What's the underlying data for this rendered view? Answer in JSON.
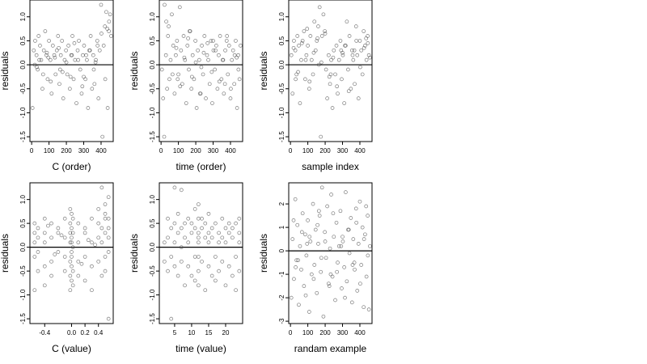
{
  "chart_data": [
    {
      "type": "scatter",
      "xlabel": "C (order)",
      "ylabel": "residuals",
      "xlim": [
        -10,
        470
      ],
      "ylim": [
        -1.6,
        1.35
      ],
      "xticks": [
        0,
        100,
        200,
        300,
        400
      ],
      "yticks": [
        -1.5,
        -1.0,
        -0.5,
        0.0,
        0.5,
        1.0
      ],
      "yticklabels": [
        "-1.5",
        "-1.0",
        "-0.5",
        "0.0",
        "0.5",
        "1.0"
      ],
      "hline": 0,
      "x": [
        5,
        12,
        20,
        28,
        35,
        40,
        48,
        55,
        62,
        70,
        78,
        85,
        92,
        100,
        108,
        115,
        122,
        130,
        138,
        145,
        152,
        160,
        168,
        175,
        182,
        190,
        198,
        205,
        212,
        220,
        228,
        235,
        242,
        250,
        258,
        265,
        272,
        280,
        288,
        295,
        302,
        310,
        318,
        325,
        332,
        340,
        348,
        355,
        362,
        370,
        378,
        385,
        392,
        400,
        408,
        415,
        422,
        430,
        438,
        445,
        452,
        458,
        18,
        44,
        66,
        88,
        110,
        134,
        156,
        178,
        200,
        224,
        246,
        268,
        292,
        314,
        336,
        358,
        380,
        402,
        424,
        446,
        30,
        96,
        164,
        232,
        300,
        368,
        436
      ],
      "y": [
        -0.9,
        0.3,
        0.5,
        0.2,
        -0.1,
        0.6,
        0.4,
        0.1,
        -0.5,
        0.3,
        0.7,
        0.2,
        -0.3,
        0.5,
        0.1,
        -0.6,
        0.4,
        0.2,
        -0.2,
        0.3,
        0.6,
        -0.4,
        0.2,
        0.5,
        -0.7,
        0.1,
        0.3,
        -0.2,
        0.4,
        -0.5,
        0.2,
        0.6,
        -0.3,
        0.1,
        -0.8,
        0.3,
        0.5,
        -0.1,
        -0.6,
        0.2,
        0.4,
        -0.3,
        0.1,
        -0.9,
        0.3,
        0.6,
        -0.5,
        0.2,
        -0.4,
        0.1,
        0.5,
        -0.7,
        0.3,
        1.25,
        -1.5,
        0.4,
        0.8,
        1.1,
        -0.9,
        0.7,
        1.05,
        0.6,
        0.0,
        0.1,
        -0.2,
        0.25,
        -0.35,
        0.15,
        0.35,
        -0.15,
        0.05,
        -0.25,
        0.45,
        0.1,
        -0.45,
        0.2,
        0.3,
        -0.1,
        0.4,
        0.65,
        -0.3,
        0.9,
        -0.05,
        0.15,
        -0.1,
        0.2,
        -0.25,
        0.05,
        0.75
      ]
    },
    {
      "type": "scatter",
      "xlabel": "time (order)",
      "ylabel": "residuals",
      "xlim": [
        -10,
        470
      ],
      "ylim": [
        -1.6,
        1.35
      ],
      "xticks": [
        0,
        100,
        200,
        300,
        400
      ],
      "yticks": [
        -1.5,
        -1.0,
        -0.5,
        0.0,
        0.5,
        1.0
      ],
      "yticklabels": [
        "-1.5",
        "-1.0",
        "-0.5",
        "0.0",
        "0.5",
        "1.0"
      ],
      "hline": 0,
      "x": [
        5,
        12,
        20,
        28,
        35,
        40,
        48,
        55,
        62,
        70,
        78,
        85,
        92,
        100,
        108,
        115,
        122,
        130,
        138,
        145,
        152,
        160,
        168,
        175,
        182,
        190,
        198,
        205,
        212,
        220,
        228,
        235,
        242,
        250,
        258,
        265,
        272,
        280,
        288,
        295,
        302,
        310,
        318,
        325,
        332,
        340,
        348,
        355,
        362,
        370,
        378,
        385,
        392,
        400,
        408,
        415,
        422,
        430,
        438,
        445,
        452,
        458,
        18,
        44,
        66,
        88,
        110,
        134,
        156,
        178,
        200,
        224,
        246,
        268,
        292,
        314,
        336,
        358,
        380,
        402,
        424,
        446,
        30,
        96,
        164,
        232,
        300,
        368,
        436
      ],
      "y": [
        -0.1,
        -0.7,
        1.25,
        0.2,
        -0.5,
        0.6,
        -0.3,
        0.1,
        1.05,
        0.4,
        -0.6,
        0.2,
        0.5,
        -0.2,
        1.2,
        0.3,
        -0.4,
        0.6,
        0.1,
        -0.8,
        0.4,
        -0.1,
        0.7,
        -0.5,
        0.2,
        -0.3,
        0.5,
        -0.9,
        0.3,
        0.1,
        -0.6,
        0.4,
        -0.2,
        0.6,
        -0.7,
        0.2,
        0.1,
        -0.4,
        0.5,
        -0.8,
        0.3,
        -0.1,
        0.4,
        -0.5,
        0.2,
        0.6,
        -0.3,
        0.1,
        -0.6,
        0.3,
        0.5,
        -0.2,
        0.4,
        -0.7,
        0.1,
        0.3,
        -0.4,
        0.5,
        -0.9,
        0.2,
        -0.3,
        0.4,
        -1.5,
        0.8,
        -0.2,
        0.35,
        -0.45,
        0.15,
        0.55,
        -0.25,
        0.05,
        -0.6,
        0.25,
        0.45,
        -0.15,
        0.3,
        -0.35,
        0.1,
        0.6,
        -0.5,
        0.2,
        -0.1,
        0.9,
        -0.3,
        0.7,
        -0.05,
        0.5,
        -0.4,
        0.15
      ]
    },
    {
      "type": "scatter",
      "xlabel": "sample index",
      "ylabel": "residuals",
      "xlim": [
        -10,
        470
      ],
      "ylim": [
        -1.6,
        1.35
      ],
      "xticks": [
        0,
        100,
        200,
        300,
        400
      ],
      "yticks": [
        -1.5,
        -1.0,
        -0.5,
        0.0,
        0.5,
        1.0
      ],
      "yticklabels": [
        "-1.5",
        "-1.0",
        "-0.5",
        "0.0",
        "0.5",
        "1.0"
      ],
      "hline": 0,
      "x": [
        5,
        12,
        20,
        28,
        35,
        40,
        48,
        55,
        62,
        70,
        78,
        85,
        92,
        100,
        108,
        115,
        122,
        130,
        138,
        145,
        152,
        160,
        168,
        175,
        182,
        190,
        198,
        205,
        212,
        220,
        228,
        235,
        242,
        250,
        258,
        265,
        272,
        280,
        288,
        295,
        302,
        310,
        318,
        325,
        332,
        340,
        348,
        355,
        362,
        370,
        378,
        385,
        392,
        400,
        408,
        415,
        422,
        430,
        438,
        445,
        452,
        458,
        18,
        44,
        66,
        88,
        110,
        134,
        156,
        178,
        200,
        224,
        246,
        268,
        292,
        314,
        336,
        358,
        380,
        402,
        424,
        446,
        30,
        96,
        164,
        232,
        300,
        368,
        436
      ],
      "y": [
        0.2,
        -0.6,
        0.5,
        0.3,
        -0.2,
        0.6,
        0.4,
        -0.8,
        0.1,
        0.5,
        0.7,
        -0.3,
        0.2,
        0.4,
        -0.5,
        0.6,
        0.1,
        -0.2,
        0.9,
        0.3,
        0.5,
        0.8,
        1.2,
        -1.5,
        0.6,
        1.05,
        0.7,
        -0.1,
        -0.7,
        0.2,
        -0.4,
        0.1,
        -0.9,
        0.3,
        -0.2,
        0.4,
        -0.6,
        0.1,
        0.5,
        -0.3,
        0.2,
        -0.8,
        0.4,
        0.9,
        -0.1,
        0.6,
        -0.5,
        0.3,
        0.1,
        -0.4,
        0.8,
        0.2,
        -0.7,
        0.5,
        0.3,
        -0.2,
        0.7,
        0.4,
        0.1,
        0.6,
        0.2,
        0.15,
        0.35,
        -0.15,
        0.45,
        0.1,
        -0.35,
        0.25,
        0.55,
        0.05,
        0.65,
        -0.25,
        0.15,
        -0.45,
        0.3,
        0.4,
        -0.55,
        0.2,
        0.5,
        -0.05,
        0.35,
        0.45,
        -0.3,
        0.75,
        0.0,
        -0.2,
        0.25,
        0.3,
        0.55
      ]
    },
    {
      "type": "scatter",
      "xlabel": "C (value)",
      "ylabel": "residuals",
      "xlim": [
        -0.62,
        0.62
      ],
      "ylim": [
        -1.6,
        1.35
      ],
      "xticks": [
        -0.4,
        0.0,
        0.2,
        0.4
      ],
      "xticklabels": [
        "-0.4",
        "0.0",
        "0.2",
        "0.4"
      ],
      "yticks": [
        -1.5,
        -1.0,
        -0.5,
        0.0,
        0.5,
        1.0
      ],
      "yticklabels": [
        "-1.5",
        "-1.0",
        "-0.5",
        "0.0",
        "0.5",
        "1.0"
      ],
      "hline": 0,
      "x": [
        -0.55,
        -0.55,
        -0.55,
        -0.55,
        -0.55,
        -0.5,
        -0.5,
        -0.5,
        -0.5,
        -0.4,
        -0.4,
        -0.4,
        -0.4,
        -0.4,
        -0.3,
        -0.3,
        -0.3,
        -0.3,
        -0.2,
        -0.2,
        -0.2,
        -0.1,
        -0.1,
        -0.1,
        -0.1,
        -0.02,
        -0.02,
        -0.02,
        -0.02,
        -0.02,
        -0.02,
        -0.02,
        0.0,
        0.0,
        0.0,
        0.0,
        0.0,
        0.0,
        0.0,
        0.0,
        0.02,
        0.02,
        0.02,
        0.02,
        0.02,
        0.1,
        0.1,
        0.1,
        0.1,
        0.2,
        0.2,
        0.2,
        0.2,
        0.3,
        0.3,
        0.3,
        0.3,
        0.4,
        0.4,
        0.4,
        0.4,
        0.45,
        0.45,
        0.45,
        0.45,
        0.5,
        0.5,
        0.5,
        0.5,
        0.5,
        0.5,
        0.55,
        0.55,
        0.55,
        0.55,
        0.55,
        0.55,
        -0.35,
        -0.25,
        -0.15,
        0.15,
        0.25,
        0.35
      ],
      "y": [
        0.3,
        -0.2,
        -0.9,
        0.5,
        0.1,
        0.4,
        -0.5,
        0.2,
        -0.1,
        0.6,
        -0.4,
        0.1,
        -0.8,
        0.3,
        0.5,
        -0.3,
        0.2,
        -0.6,
        0.4,
        -0.1,
        0.3,
        0.2,
        -0.5,
        0.6,
        -0.2,
        0.8,
        0.5,
        0.1,
        -0.3,
        -0.6,
        -0.9,
        0.3,
        0.7,
        0.4,
        0.1,
        -0.1,
        -0.4,
        -0.7,
        0.2,
        -0.2,
        0.6,
        -0.5,
        0.3,
        -0.8,
        0.0,
        0.5,
        -0.3,
        0.1,
        -0.6,
        0.4,
        -0.2,
        -0.7,
        0.3,
        0.6,
        -0.4,
        0.1,
        -0.9,
        0.8,
        -0.3,
        0.5,
        0.2,
        1.25,
        -0.6,
        0.4,
        0.1,
        0.9,
        0.6,
        -0.2,
        0.3,
        -0.5,
        0.7,
        1.05,
        -1.5,
        0.4,
        -0.1,
        0.6,
        0.2,
        0.45,
        -0.15,
        0.25,
        -0.35,
        0.15,
        0.05
      ]
    },
    {
      "type": "scatter",
      "xlabel": "time (value)",
      "ylabel": "residuals",
      "xlim": [
        0.5,
        25
      ],
      "ylim": [
        -1.6,
        1.35
      ],
      "xticks": [
        5,
        10,
        15,
        20
      ],
      "yticks": [
        -1.5,
        -1.0,
        -0.5,
        0.0,
        0.5,
        1.0
      ],
      "yticklabels": [
        "-1.5",
        "-1.0",
        "-0.5",
        "0.0",
        "0.5",
        "1.0"
      ],
      "hline": 0,
      "x": [
        2,
        2,
        3,
        3,
        3,
        4,
        4,
        4,
        5,
        5,
        5,
        5,
        6,
        6,
        6,
        7,
        7,
        7,
        7,
        8,
        8,
        8,
        9,
        9,
        9,
        10,
        10,
        10,
        11,
        11,
        11,
        11,
        12,
        12,
        12,
        12,
        12,
        12,
        12,
        12,
        13,
        13,
        13,
        14,
        14,
        14,
        15,
        15,
        15,
        15,
        16,
        16,
        16,
        17,
        17,
        17,
        18,
        18,
        18,
        19,
        19,
        19,
        20,
        20,
        20,
        21,
        21,
        21,
        22,
        22,
        22,
        23,
        23,
        23,
        24,
        24,
        24,
        24
      ],
      "y": [
        0.1,
        -0.3,
        0.6,
        -0.5,
        0.2,
        0.4,
        -1.5,
        -0.2,
        1.25,
        0.5,
        -0.4,
        0.1,
        0.7,
        -0.6,
        0.3,
        1.2,
        0.4,
        -0.3,
        0.0,
        0.5,
        -0.8,
        0.2,
        0.6,
        -0.4,
        0.1,
        0.3,
        -0.6,
        0.5,
        0.8,
        -0.2,
        0.4,
        -0.7,
        0.9,
        0.6,
        0.3,
        0.1,
        -0.2,
        -0.5,
        -0.8,
        0.2,
        0.4,
        -0.3,
        0.6,
        -0.9,
        0.2,
        0.5,
        0.3,
        -0.4,
        0.1,
        0.7,
        -0.6,
        0.2,
        0.4,
        0.5,
        -0.2,
        -0.7,
        0.3,
        0.1,
        -0.5,
        0.6,
        -0.3,
        0.2,
        0.4,
        -0.8,
        0.1,
        0.5,
        -0.4,
        0.3,
        0.2,
        -0.6,
        0.4,
        -0.2,
        0.5,
        -0.9,
        0.3,
        -0.5,
        0.1,
        0.6
      ]
    },
    {
      "type": "scatter",
      "xlabel": "randam example",
      "ylabel": "residuals",
      "xlim": [
        -10,
        470
      ],
      "ylim": [
        -3.1,
        2.9
      ],
      "xticks": [
        0,
        100,
        200,
        300,
        400
      ],
      "yticks": [
        -3,
        -2,
        -1,
        0,
        1,
        2
      ],
      "yticklabels": [
        "-3",
        "-2",
        "-1",
        "0",
        "1",
        "2"
      ],
      "hline": 0,
      "x": [
        5,
        12,
        20,
        28,
        35,
        40,
        48,
        55,
        62,
        70,
        78,
        85,
        92,
        100,
        108,
        115,
        122,
        130,
        138,
        145,
        152,
        160,
        168,
        175,
        182,
        190,
        198,
        205,
        212,
        220,
        228,
        235,
        242,
        250,
        258,
        265,
        272,
        280,
        288,
        295,
        302,
        310,
        318,
        325,
        332,
        340,
        348,
        355,
        362,
        370,
        378,
        385,
        392,
        400,
        408,
        415,
        422,
        430,
        438,
        445,
        452,
        458,
        18,
        44,
        66,
        88,
        110,
        134,
        156,
        178,
        200,
        224,
        246,
        268,
        292,
        314,
        336,
        358,
        380,
        402,
        424,
        446,
        30,
        96,
        164,
        232,
        300,
        368,
        436
      ],
      "y": [
        -2.0,
        0.5,
        -1.2,
        2.2,
        -0.4,
        1.1,
        -2.3,
        0.2,
        -0.8,
        1.6,
        -1.5,
        0.7,
        -0.2,
        1.3,
        -2.6,
        0.4,
        -1.0,
        2.0,
        -0.6,
        0.9,
        -1.8,
        0.3,
        1.5,
        -0.9,
        2.7,
        -2.8,
        0.8,
        -0.3,
        1.9,
        -1.4,
        0.1,
        2.4,
        -1.1,
        0.6,
        -2.1,
        1.2,
        -0.5,
        0.2,
        1.7,
        -1.6,
        0.4,
        -0.7,
        2.5,
        -1.3,
        0.9,
        -0.1,
        1.4,
        -2.2,
        0.5,
        -0.8,
        1.8,
        -1.7,
        0.3,
        2.1,
        -0.6,
        1.0,
        -2.4,
        0.7,
        -1.1,
        1.5,
        -2.5,
        0.2,
        1.3,
        -0.4,
        0.8,
        -1.9,
        0.6,
        -1.2,
        1.1,
        -0.3,
        0.4,
        -1.5,
        1.6,
        -0.9,
        0.2,
        -2.0,
        0.9,
        -0.6,
        1.2,
        -1.4,
        0.5,
        -0.2,
        -0.7,
        0.3,
        1.7,
        -1.0,
        0.6,
        -0.5,
        1.9
      ]
    }
  ]
}
